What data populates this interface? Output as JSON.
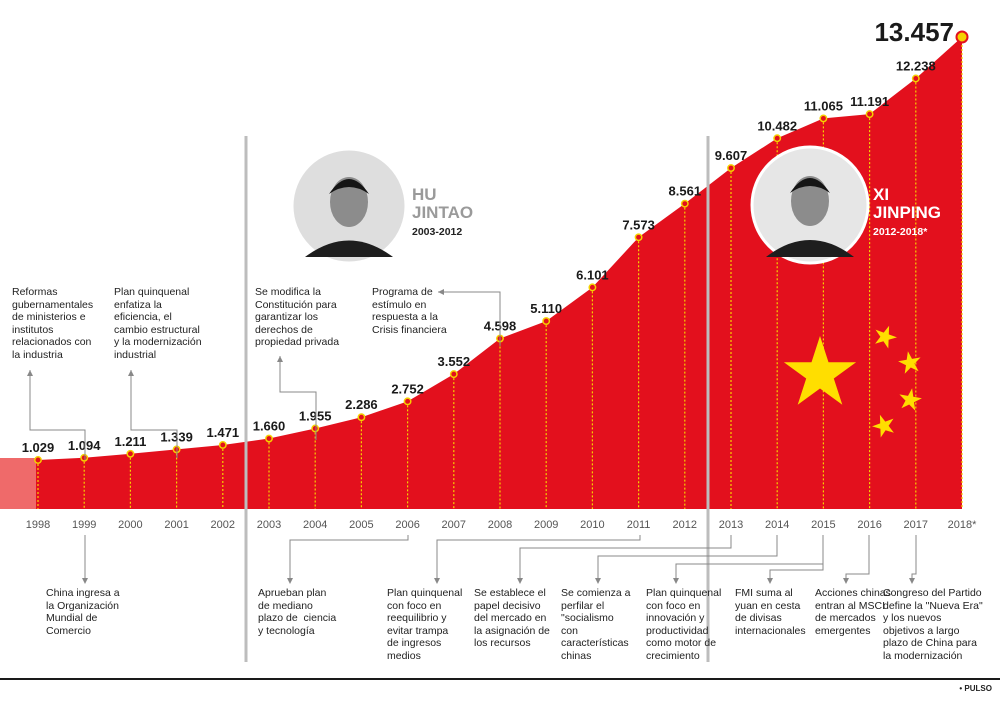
{
  "chart_data": {
    "type": "area",
    "x": [
      "1998",
      "1999",
      "2000",
      "2001",
      "2002",
      "2003",
      "2004",
      "2005",
      "2006",
      "2007",
      "2008",
      "2009",
      "2010",
      "2011",
      "2012",
      "2013",
      "2014",
      "2015",
      "2016",
      "2017",
      "2018*"
    ],
    "value_labels": [
      "1.029",
      "1.094",
      "1.211",
      "1.339",
      "1.471",
      "1.660",
      "1.955",
      "2.286",
      "2.752",
      "3.552",
      "4.598",
      "5.110",
      "6.101",
      "7.573",
      "8.561",
      "9.607",
      "10.482",
      "11.065",
      "11.191",
      "12.238",
      "13.457"
    ],
    "values": [
      1029,
      1094,
      1211,
      1339,
      1471,
      1660,
      1955,
      2286,
      2752,
      3552,
      4598,
      5110,
      6101,
      7573,
      8561,
      9607,
      10482,
      11065,
      11191,
      12238,
      13457
    ],
    "colors": {
      "area": "#e3101d",
      "dots": "#f5d100",
      "lead": "#ef6a6a",
      "text": "#1a1a1a"
    }
  },
  "leaders": [
    {
      "name": "hu-jintao",
      "label": "HU\nJINTAO",
      "years": "2003-2012"
    },
    {
      "name": "xi-jinping",
      "label": "XI\nJINPING",
      "years": "2012-2018*"
    }
  ],
  "notes_top": [
    {
      "name": "note-1999-reformas",
      "text": "Reformas\ngubernamentales\nde ministerios e\ninstitutos\nrelacionados con\nla industria"
    },
    {
      "name": "note-2001-plan",
      "text": "Plan quinquenal\nenfatiza la\neficiencia, el\ncambio estructural\ny la modernización\nindustrial"
    },
    {
      "name": "note-2004-constitucion",
      "text": "Se modifica la\nConstitución para\ngarantizar los\nderechos de\npropiedad privada"
    },
    {
      "name": "note-2008-estimulo",
      "text": "Programa de\nestímulo en\nrespuesta a la\nCrisis financiera"
    }
  ],
  "notes_bottom": [
    {
      "name": "note-1999-omc",
      "text": "China ingresa a\nla Organización\nMundial de\nComercio"
    },
    {
      "name": "note-2006-plan",
      "text": "Aprueban plan\nde mediano\nplazo de  ciencia\ny tecnología"
    },
    {
      "name": "note-2011-plan",
      "text": "Plan quinquenal\ncon foco en\nreequilibrio y\nevitar trampa\nde ingresos\nmedios"
    },
    {
      "name": "note-2013-mercado",
      "text": "Se establece el\npapel decisivo\ndel mercado en\nla asignación de\nlos recursos"
    },
    {
      "name": "note-2014-socialismo",
      "text": "Se comienza a\nperfilar el\n\"socialismo\ncon\ncaracterísticas\nchinas"
    },
    {
      "name": "note-2016-plan",
      "text": "Plan quinquenal\ncon foco en\ninnovación y\nproductividad\ncomo motor de\ncrecimiento"
    },
    {
      "name": "note-2016-fmi",
      "text": "FMI suma al\nyuan en cesta\nde divisas\ninternacionales"
    },
    {
      "name": "note-2017-msci",
      "text": "Acciones chinas\nentran al MSCI\nde mercados\nemergentes"
    },
    {
      "name": "note-2017-congreso",
      "text": "Congreso del Partido\ndefine la \"Nueva Era\"\ny los nuevos\nobjetivos a largo\nplazo de China para\nla modernización"
    }
  ],
  "credit": "• PULSO"
}
